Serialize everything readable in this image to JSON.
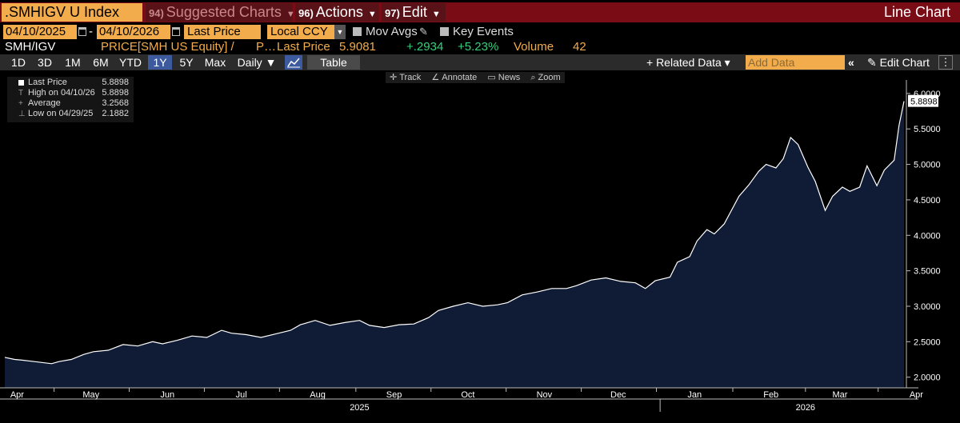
{
  "titlebar": {
    "ticker": ".SMHIGV U Index",
    "suggested": {
      "num": "94)",
      "label": "Suggested Charts"
    },
    "actions": {
      "num": "96)",
      "label": "Actions"
    },
    "edit": {
      "num": "97)",
      "label": "Edit"
    },
    "chart_kind": "Line Chart"
  },
  "controls": {
    "start_date": "04/10/2025",
    "end_date": "04/10/2026",
    "dash": "-",
    "field": "Last Price",
    "currency": "Local CCY",
    "mov_avgs": "Mov Avgs",
    "key_events": "Key Events"
  },
  "security": {
    "name": "SMH/IGV",
    "expression": "PRICE[SMH US Equity] /",
    "p_abbr": "P…",
    "last_label": "Last Price",
    "last_value": "5.9081",
    "change": "+.2934",
    "change_pct": "+5.23%",
    "volume_label": "Volume",
    "volume_value": "42"
  },
  "toolbar": {
    "periods": [
      "1D",
      "3D",
      "1M",
      "6M",
      "YTD",
      "1Y",
      "5Y",
      "Max"
    ],
    "active_period": "1Y",
    "frequency": "Daily ▼",
    "table": "Table",
    "related": "+ Related Data ▾",
    "add_data_placeholder": "Add Data",
    "collapse": "«",
    "edit_chart": "✎ Edit Chart",
    "menu": "⋮"
  },
  "chart_tools": {
    "track": "Track",
    "annotate": "Annotate",
    "news": "News",
    "zoom": "Zoom"
  },
  "legend": {
    "last_price_label": "Last Price",
    "last_price": "5.8898",
    "high_label": "High on 04/10/26",
    "high": "5.8898",
    "avg_label": "Average",
    "avg": "3.2568",
    "low_label": "Low on 04/29/25",
    "low": "2.1882"
  },
  "colors": {
    "accent_orange": "#f2ac4c",
    "title_red": "#7a0c15",
    "positive_green": "#33d17a",
    "series_line": "#ffffff",
    "series_fill": "#101c36"
  },
  "chart_data": {
    "type": "area",
    "title": "",
    "xlabel": "",
    "ylabel": "",
    "ylim": [
      1.85,
      6.1
    ],
    "yticks": [
      2.0,
      2.5,
      3.0,
      3.5,
      4.0,
      4.5,
      5.0,
      5.5,
      6.0
    ],
    "ytick_labels": [
      "2.0000",
      "2.5000",
      "3.0000",
      "3.5000",
      "4.0000",
      "4.5000",
      "5.0000",
      "5.5000",
      "6.0000"
    ],
    "xlim": [
      "2025-04-10",
      "2026-04-10"
    ],
    "month_ticks": [
      {
        "date": "2025-04-15",
        "label": "Apr"
      },
      {
        "date": "2025-05-15",
        "label": "May"
      },
      {
        "date": "2025-06-15",
        "label": "Jun"
      },
      {
        "date": "2025-07-15",
        "label": "Jul"
      },
      {
        "date": "2025-08-15",
        "label": "Aug"
      },
      {
        "date": "2025-09-15",
        "label": "Sep"
      },
      {
        "date": "2025-10-15",
        "label": "Oct"
      },
      {
        "date": "2025-11-15",
        "label": "Nov"
      },
      {
        "date": "2025-12-15",
        "label": "Dec"
      },
      {
        "date": "2026-01-15",
        "label": "Jan"
      },
      {
        "date": "2026-02-15",
        "label": "Feb"
      },
      {
        "date": "2026-03-15",
        "label": "Mar"
      },
      {
        "date": "2026-04-15",
        "label": "Apr"
      }
    ],
    "year_labels": [
      {
        "date": "2025-09-01",
        "label": "2025"
      },
      {
        "date": "2026-03-01",
        "label": "2026"
      }
    ],
    "last_value_label": "5.8898",
    "series": [
      {
        "name": "Last Price",
        "points": [
          [
            "2025-04-10",
            2.28
          ],
          [
            "2025-04-14",
            2.25
          ],
          [
            "2025-04-17",
            2.24
          ],
          [
            "2025-04-22",
            2.22
          ],
          [
            "2025-04-29",
            2.19
          ],
          [
            "2025-05-02",
            2.22
          ],
          [
            "2025-05-07",
            2.25
          ],
          [
            "2025-05-12",
            2.32
          ],
          [
            "2025-05-16",
            2.36
          ],
          [
            "2025-05-22",
            2.38
          ],
          [
            "2025-05-28",
            2.46
          ],
          [
            "2025-06-03",
            2.44
          ],
          [
            "2025-06-09",
            2.5
          ],
          [
            "2025-06-13",
            2.47
          ],
          [
            "2025-06-19",
            2.52
          ],
          [
            "2025-06-25",
            2.58
          ],
          [
            "2025-07-01",
            2.56
          ],
          [
            "2025-07-07",
            2.66
          ],
          [
            "2025-07-11",
            2.62
          ],
          [
            "2025-07-17",
            2.6
          ],
          [
            "2025-07-23",
            2.56
          ],
          [
            "2025-07-29",
            2.61
          ],
          [
            "2025-08-04",
            2.66
          ],
          [
            "2025-08-08",
            2.74
          ],
          [
            "2025-08-14",
            2.8
          ],
          [
            "2025-08-20",
            2.73
          ],
          [
            "2025-08-26",
            2.77
          ],
          [
            "2025-09-01",
            2.8
          ],
          [
            "2025-09-05",
            2.73
          ],
          [
            "2025-09-11",
            2.7
          ],
          [
            "2025-09-17",
            2.74
          ],
          [
            "2025-09-23",
            2.75
          ],
          [
            "2025-09-29",
            2.84
          ],
          [
            "2025-10-03",
            2.94
          ],
          [
            "2025-10-09",
            3.0
          ],
          [
            "2025-10-15",
            3.05
          ],
          [
            "2025-10-21",
            3.0
          ],
          [
            "2025-10-27",
            3.02
          ],
          [
            "2025-10-31",
            3.05
          ],
          [
            "2025-11-06",
            3.16
          ],
          [
            "2025-11-12",
            3.2
          ],
          [
            "2025-11-18",
            3.25
          ],
          [
            "2025-11-24",
            3.25
          ],
          [
            "2025-11-28",
            3.29
          ],
          [
            "2025-12-04",
            3.37
          ],
          [
            "2025-12-10",
            3.4
          ],
          [
            "2025-12-16",
            3.35
          ],
          [
            "2025-12-22",
            3.33
          ],
          [
            "2025-12-26",
            3.25
          ],
          [
            "2025-12-30",
            3.36
          ],
          [
            "2026-01-05",
            3.41
          ],
          [
            "2026-01-08",
            3.62
          ],
          [
            "2026-01-13",
            3.7
          ],
          [
            "2026-01-16",
            3.92
          ],
          [
            "2026-01-20",
            4.08
          ],
          [
            "2026-01-23",
            4.02
          ],
          [
            "2026-01-27",
            4.16
          ],
          [
            "2026-02-02",
            4.55
          ],
          [
            "2026-02-06",
            4.71
          ],
          [
            "2026-02-10",
            4.9
          ],
          [
            "2026-02-13",
            5.0
          ],
          [
            "2026-02-17",
            4.95
          ],
          [
            "2026-02-20",
            5.08
          ],
          [
            "2026-02-23",
            5.38
          ],
          [
            "2026-02-26",
            5.28
          ],
          [
            "2026-03-02",
            4.96
          ],
          [
            "2026-03-05",
            4.76
          ],
          [
            "2026-03-09",
            4.35
          ],
          [
            "2026-03-12",
            4.55
          ],
          [
            "2026-03-16",
            4.68
          ],
          [
            "2026-03-19",
            4.62
          ],
          [
            "2026-03-23",
            4.68
          ],
          [
            "2026-03-26",
            4.98
          ],
          [
            "2026-03-30",
            4.7
          ],
          [
            "2026-04-02",
            4.92
          ],
          [
            "2026-04-06",
            5.06
          ],
          [
            "2026-04-08",
            5.55
          ],
          [
            "2026-04-10",
            5.8898
          ]
        ]
      }
    ],
    "grid": false,
    "legend": "top-left"
  }
}
